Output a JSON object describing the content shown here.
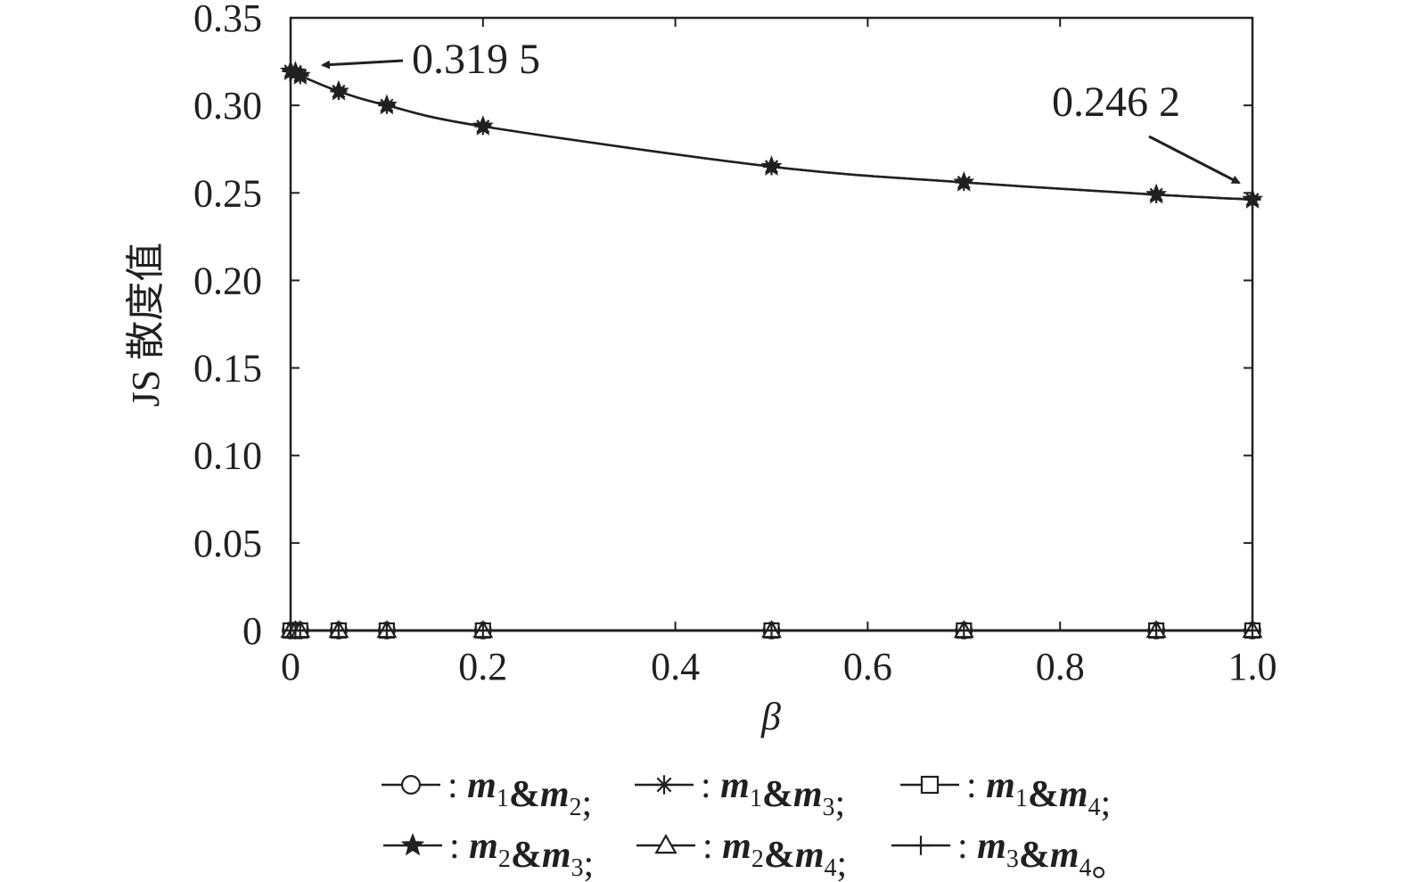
{
  "chart_data": {
    "type": "line",
    "xlabel": "β",
    "ylabel": "JS 散度值",
    "xlim": [
      0,
      1.0
    ],
    "ylim": [
      0,
      0.35
    ],
    "xticks": [
      "0",
      "0.2",
      "0.4",
      "0.6",
      "0.8",
      "1.0"
    ],
    "yticks": [
      "0",
      "0.05",
      "0.10",
      "0.15",
      "0.20",
      "0.25",
      "0.30",
      "0.35"
    ],
    "grid": false,
    "legend_position": "bottom",
    "x": [
      0,
      0.005,
      0.01,
      0.05,
      0.1,
      0.2,
      0.5,
      0.7,
      0.9,
      1.0
    ],
    "series": [
      {
        "name": "m1&m2",
        "marker": "circle",
        "values": [
          0,
          0,
          0,
          0,
          0,
          0,
          0,
          0,
          0,
          0
        ]
      },
      {
        "name": "m1&m3",
        "marker": "asterisk",
        "values": [
          0.3195,
          0.319,
          0.317,
          0.308,
          0.3,
          0.288,
          0.265,
          0.256,
          0.249,
          0.2462
        ]
      },
      {
        "name": "m1&m4",
        "marker": "square",
        "values": [
          0,
          0,
          0,
          0,
          0,
          0,
          0,
          0,
          0,
          0
        ]
      },
      {
        "name": "m2&m3",
        "marker": "star",
        "values": [
          0.3195,
          0.319,
          0.317,
          0.308,
          0.3,
          0.288,
          0.265,
          0.256,
          0.249,
          0.2462
        ]
      },
      {
        "name": "m2&m4",
        "marker": "triangle",
        "values": [
          0,
          0,
          0,
          0,
          0,
          0,
          0,
          0,
          0,
          0
        ]
      },
      {
        "name": "m3&m4",
        "marker": "plus",
        "values": [
          0,
          0,
          0,
          0,
          0,
          0,
          0,
          0,
          0,
          0
        ]
      }
    ],
    "annotations": [
      {
        "text": "0.319 5",
        "x": 0,
        "y": 0.3195
      },
      {
        "text": "0.246 2",
        "x": 1.0,
        "y": 0.2462
      }
    ],
    "legend": [
      {
        "m": "m",
        "a": "1",
        "amp": "&",
        "b": "2",
        "sep": ";"
      },
      {
        "m": "m",
        "a": "1",
        "amp": "&",
        "b": "3",
        "sep": ";"
      },
      {
        "m": "m",
        "a": "1",
        "amp": "&",
        "b": "4",
        "sep": ";"
      },
      {
        "m": "m",
        "a": "2",
        "amp": "&",
        "b": "3",
        "sep": ";"
      },
      {
        "m": "m",
        "a": "2",
        "amp": "&",
        "b": "4",
        "sep": ";"
      },
      {
        "m": "m",
        "a": "3",
        "amp": "&",
        "b": "4",
        "sep": "。"
      }
    ],
    "legend_colon": ":"
  }
}
